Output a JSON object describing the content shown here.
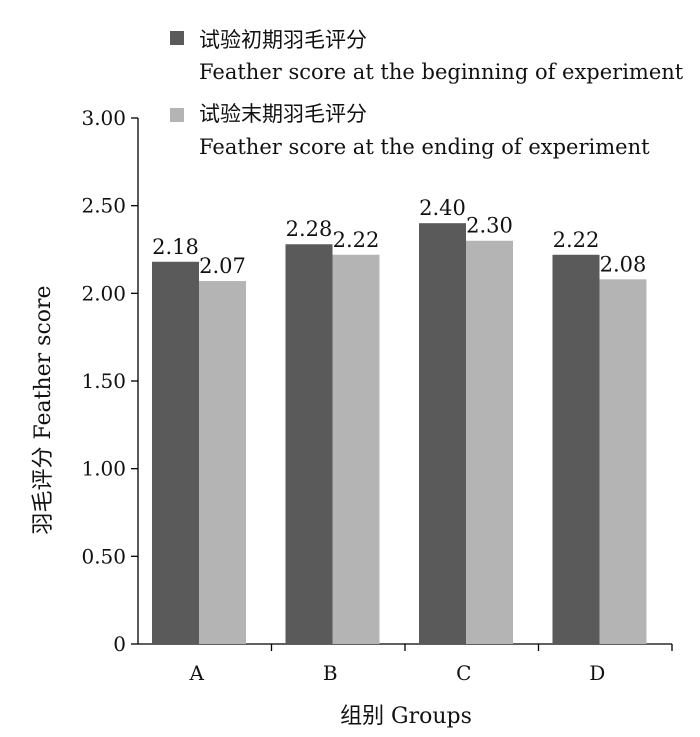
{
  "chart_data": {
    "type": "bar",
    "categories": [
      "A",
      "B",
      "C",
      "D"
    ],
    "series": [
      {
        "name_zh": "试验初期羽毛评分",
        "name_en": "Feather score at the beginning of experiment",
        "color": "#5a5a5a",
        "values": [
          2.18,
          2.28,
          2.4,
          2.22
        ],
        "labels": [
          "2.18",
          "2.28",
          "2.40",
          "2.22"
        ]
      },
      {
        "name_zh": "试验末期羽毛评分",
        "name_en": "Feather score at the ending of experiment",
        "color": "#b4b4b4",
        "values": [
          2.07,
          2.22,
          2.3,
          2.08
        ],
        "labels": [
          "2.07",
          "2.22",
          "2.30",
          "2.08"
        ]
      }
    ],
    "xlabel": "组别  Groups",
    "ylabel": "羽毛评分  Feather score",
    "ylim": [
      0,
      3.0
    ],
    "yticks": [
      0,
      0.5,
      1.0,
      1.5,
      2.0,
      2.5,
      3.0
    ],
    "ytick_labels": [
      "0",
      "0.50",
      "1.00",
      "1.50",
      "2.00",
      "2.50",
      "3.00"
    ],
    "grid": false,
    "legend_position": "top"
  }
}
